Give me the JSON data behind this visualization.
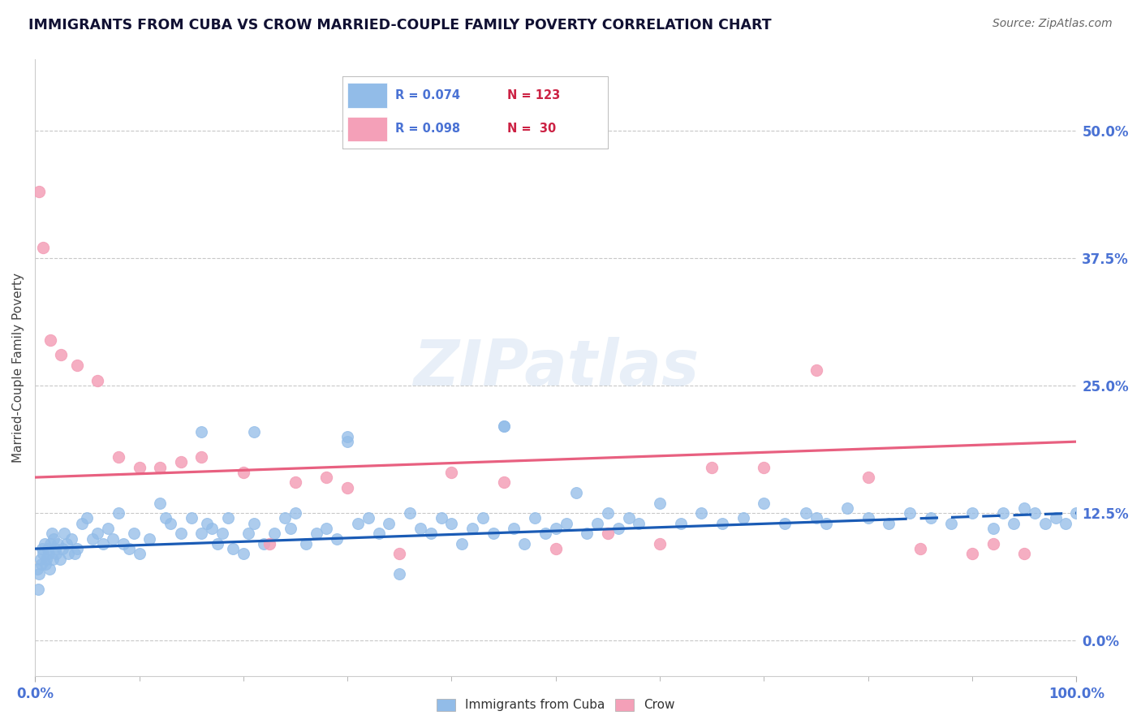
{
  "title": "IMMIGRANTS FROM CUBA VS CROW MARRIED-COUPLE FAMILY POVERTY CORRELATION CHART",
  "source": "Source: ZipAtlas.com",
  "ylabel": "Married-Couple Family Poverty",
  "xlim": [
    0,
    100
  ],
  "ylim": [
    -3.5,
    57
  ],
  "ytick_vals": [
    0.0,
    12.5,
    25.0,
    37.5,
    50.0
  ],
  "grid_color": "#c8c8c8",
  "background_color": "#ffffff",
  "watermark": "ZIPatlas",
  "color_blue": "#92bce8",
  "color_pink": "#f4a0b8",
  "line_blue": "#1a5bb5",
  "line_pink": "#e86080",
  "title_color": "#111133",
  "source_color": "#666666",
  "axis_label_color": "#4a72d4",
  "scatter_blue_x": [
    0.2,
    0.3,
    0.4,
    0.5,
    0.6,
    0.7,
    0.8,
    0.9,
    1.0,
    1.1,
    1.2,
    1.3,
    1.4,
    1.5,
    1.6,
    1.7,
    1.8,
    1.9,
    2.0,
    2.2,
    2.4,
    2.6,
    2.8,
    3.0,
    3.2,
    3.5,
    3.8,
    4.0,
    4.5,
    5.0,
    5.5,
    6.0,
    6.5,
    7.0,
    7.5,
    8.0,
    8.5,
    9.0,
    9.5,
    10.0,
    11.0,
    12.0,
    12.5,
    13.0,
    14.0,
    15.0,
    16.0,
    16.5,
    17.0,
    17.5,
    18.0,
    18.5,
    19.0,
    20.0,
    20.5,
    21.0,
    22.0,
    23.0,
    24.0,
    24.5,
    25.0,
    26.0,
    27.0,
    28.0,
    29.0,
    30.0,
    31.0,
    32.0,
    33.0,
    34.0,
    35.0,
    36.0,
    37.0,
    38.0,
    39.0,
    40.0,
    41.0,
    42.0,
    43.0,
    44.0,
    45.0,
    46.0,
    47.0,
    48.0,
    49.0,
    50.0,
    51.0,
    52.0,
    53.0,
    54.0,
    55.0,
    56.0,
    57.0,
    58.0,
    60.0,
    62.0,
    64.0,
    66.0,
    68.0,
    70.0,
    72.0,
    74.0,
    75.0,
    76.0,
    78.0,
    80.0,
    82.0,
    84.0,
    86.0,
    88.0,
    90.0,
    92.0,
    93.0,
    94.0,
    95.0,
    96.0,
    97.0,
    98.0,
    99.0,
    100.0,
    30.0,
    45.0,
    16.0,
    21.0
  ],
  "scatter_blue_y": [
    7.0,
    5.0,
    6.5,
    8.0,
    7.5,
    9.0,
    8.5,
    9.5,
    7.5,
    8.0,
    9.0,
    8.5,
    7.0,
    9.5,
    10.5,
    8.0,
    10.0,
    9.0,
    8.5,
    9.5,
    8.0,
    9.0,
    10.5,
    9.5,
    8.5,
    10.0,
    8.5,
    9.0,
    11.5,
    12.0,
    10.0,
    10.5,
    9.5,
    11.0,
    10.0,
    12.5,
    9.5,
    9.0,
    10.5,
    8.5,
    10.0,
    13.5,
    12.0,
    11.5,
    10.5,
    12.0,
    10.5,
    11.5,
    11.0,
    9.5,
    10.5,
    12.0,
    9.0,
    8.5,
    10.5,
    11.5,
    9.5,
    10.5,
    12.0,
    11.0,
    12.5,
    9.5,
    10.5,
    11.0,
    10.0,
    19.5,
    11.5,
    12.0,
    10.5,
    11.5,
    6.5,
    12.5,
    11.0,
    10.5,
    12.0,
    11.5,
    9.5,
    11.0,
    12.0,
    10.5,
    21.0,
    11.0,
    9.5,
    12.0,
    10.5,
    11.0,
    11.5,
    14.5,
    10.5,
    11.5,
    12.5,
    11.0,
    12.0,
    11.5,
    13.5,
    11.5,
    12.5,
    11.5,
    12.0,
    13.5,
    11.5,
    12.5,
    12.0,
    11.5,
    13.0,
    12.0,
    11.5,
    12.5,
    12.0,
    11.5,
    12.5,
    11.0,
    12.5,
    11.5,
    13.0,
    12.5,
    11.5,
    12.0,
    11.5,
    12.5,
    20.0,
    21.0,
    20.5,
    20.5
  ],
  "scatter_pink_x": [
    0.4,
    0.8,
    1.5,
    2.5,
    4.0,
    6.0,
    8.0,
    10.0,
    12.0,
    14.0,
    16.0,
    20.0,
    22.5,
    25.0,
    28.0,
    30.0,
    35.0,
    40.0,
    45.0,
    50.0,
    55.0,
    60.0,
    65.0,
    70.0,
    75.0,
    80.0,
    85.0,
    90.0,
    92.0,
    95.0
  ],
  "scatter_pink_y": [
    44.0,
    38.5,
    29.5,
    28.0,
    27.0,
    25.5,
    18.0,
    17.0,
    17.0,
    17.5,
    18.0,
    16.5,
    9.5,
    15.5,
    16.0,
    15.0,
    8.5,
    16.5,
    15.5,
    9.0,
    10.5,
    9.5,
    17.0,
    17.0,
    26.5,
    16.0,
    9.0,
    8.5,
    9.5,
    8.5
  ],
  "blue_line_x": [
    0,
    100
  ],
  "blue_line_y": [
    9.0,
    12.5
  ],
  "blue_dash_start_x": 82,
  "pink_line_x": [
    0,
    100
  ],
  "pink_line_y": [
    16.0,
    19.5
  ]
}
